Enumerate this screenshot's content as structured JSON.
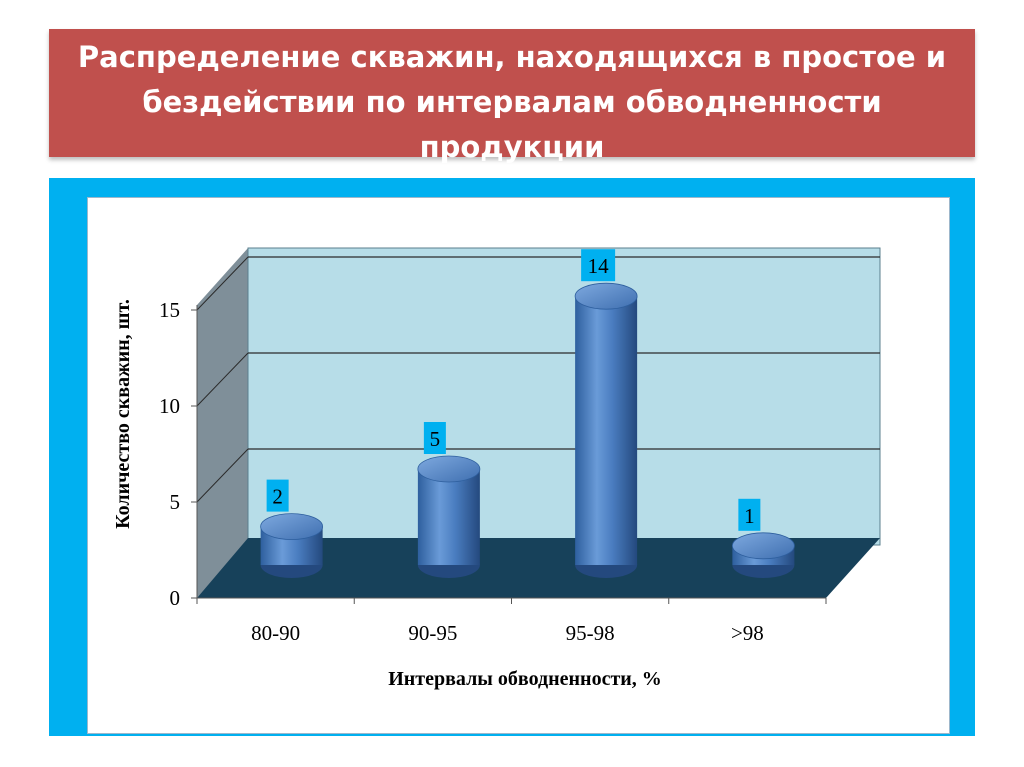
{
  "slide": {
    "title": "Распределение скважин, находящихся в простое и\nбездействии по интервалам обводненности\nпродукции"
  },
  "colors": {
    "title_bg": "#c0504d",
    "frame": "#00b0f0",
    "plot_wall": "#b7dde8",
    "side_wall": "#7f8f99",
    "floor": "#17415a",
    "bar": "#4f81bd",
    "label_bg": "#00b0f0"
  },
  "chart_data": {
    "type": "bar",
    "style": "3d-cylinder",
    "categories": [
      "80-90",
      "90-95",
      "95-98",
      ">98"
    ],
    "values": [
      2,
      5,
      14,
      1
    ],
    "data_labels": [
      "2",
      "5",
      "14",
      "1"
    ],
    "ylabel": "Количество скважин, шт.",
    "xlabel": "Интервалы обводненности, %",
    "ylim": [
      0,
      15
    ],
    "yticks": [
      "0",
      "5",
      "10",
      "15"
    ],
    "grid": true,
    "legend": "none"
  }
}
